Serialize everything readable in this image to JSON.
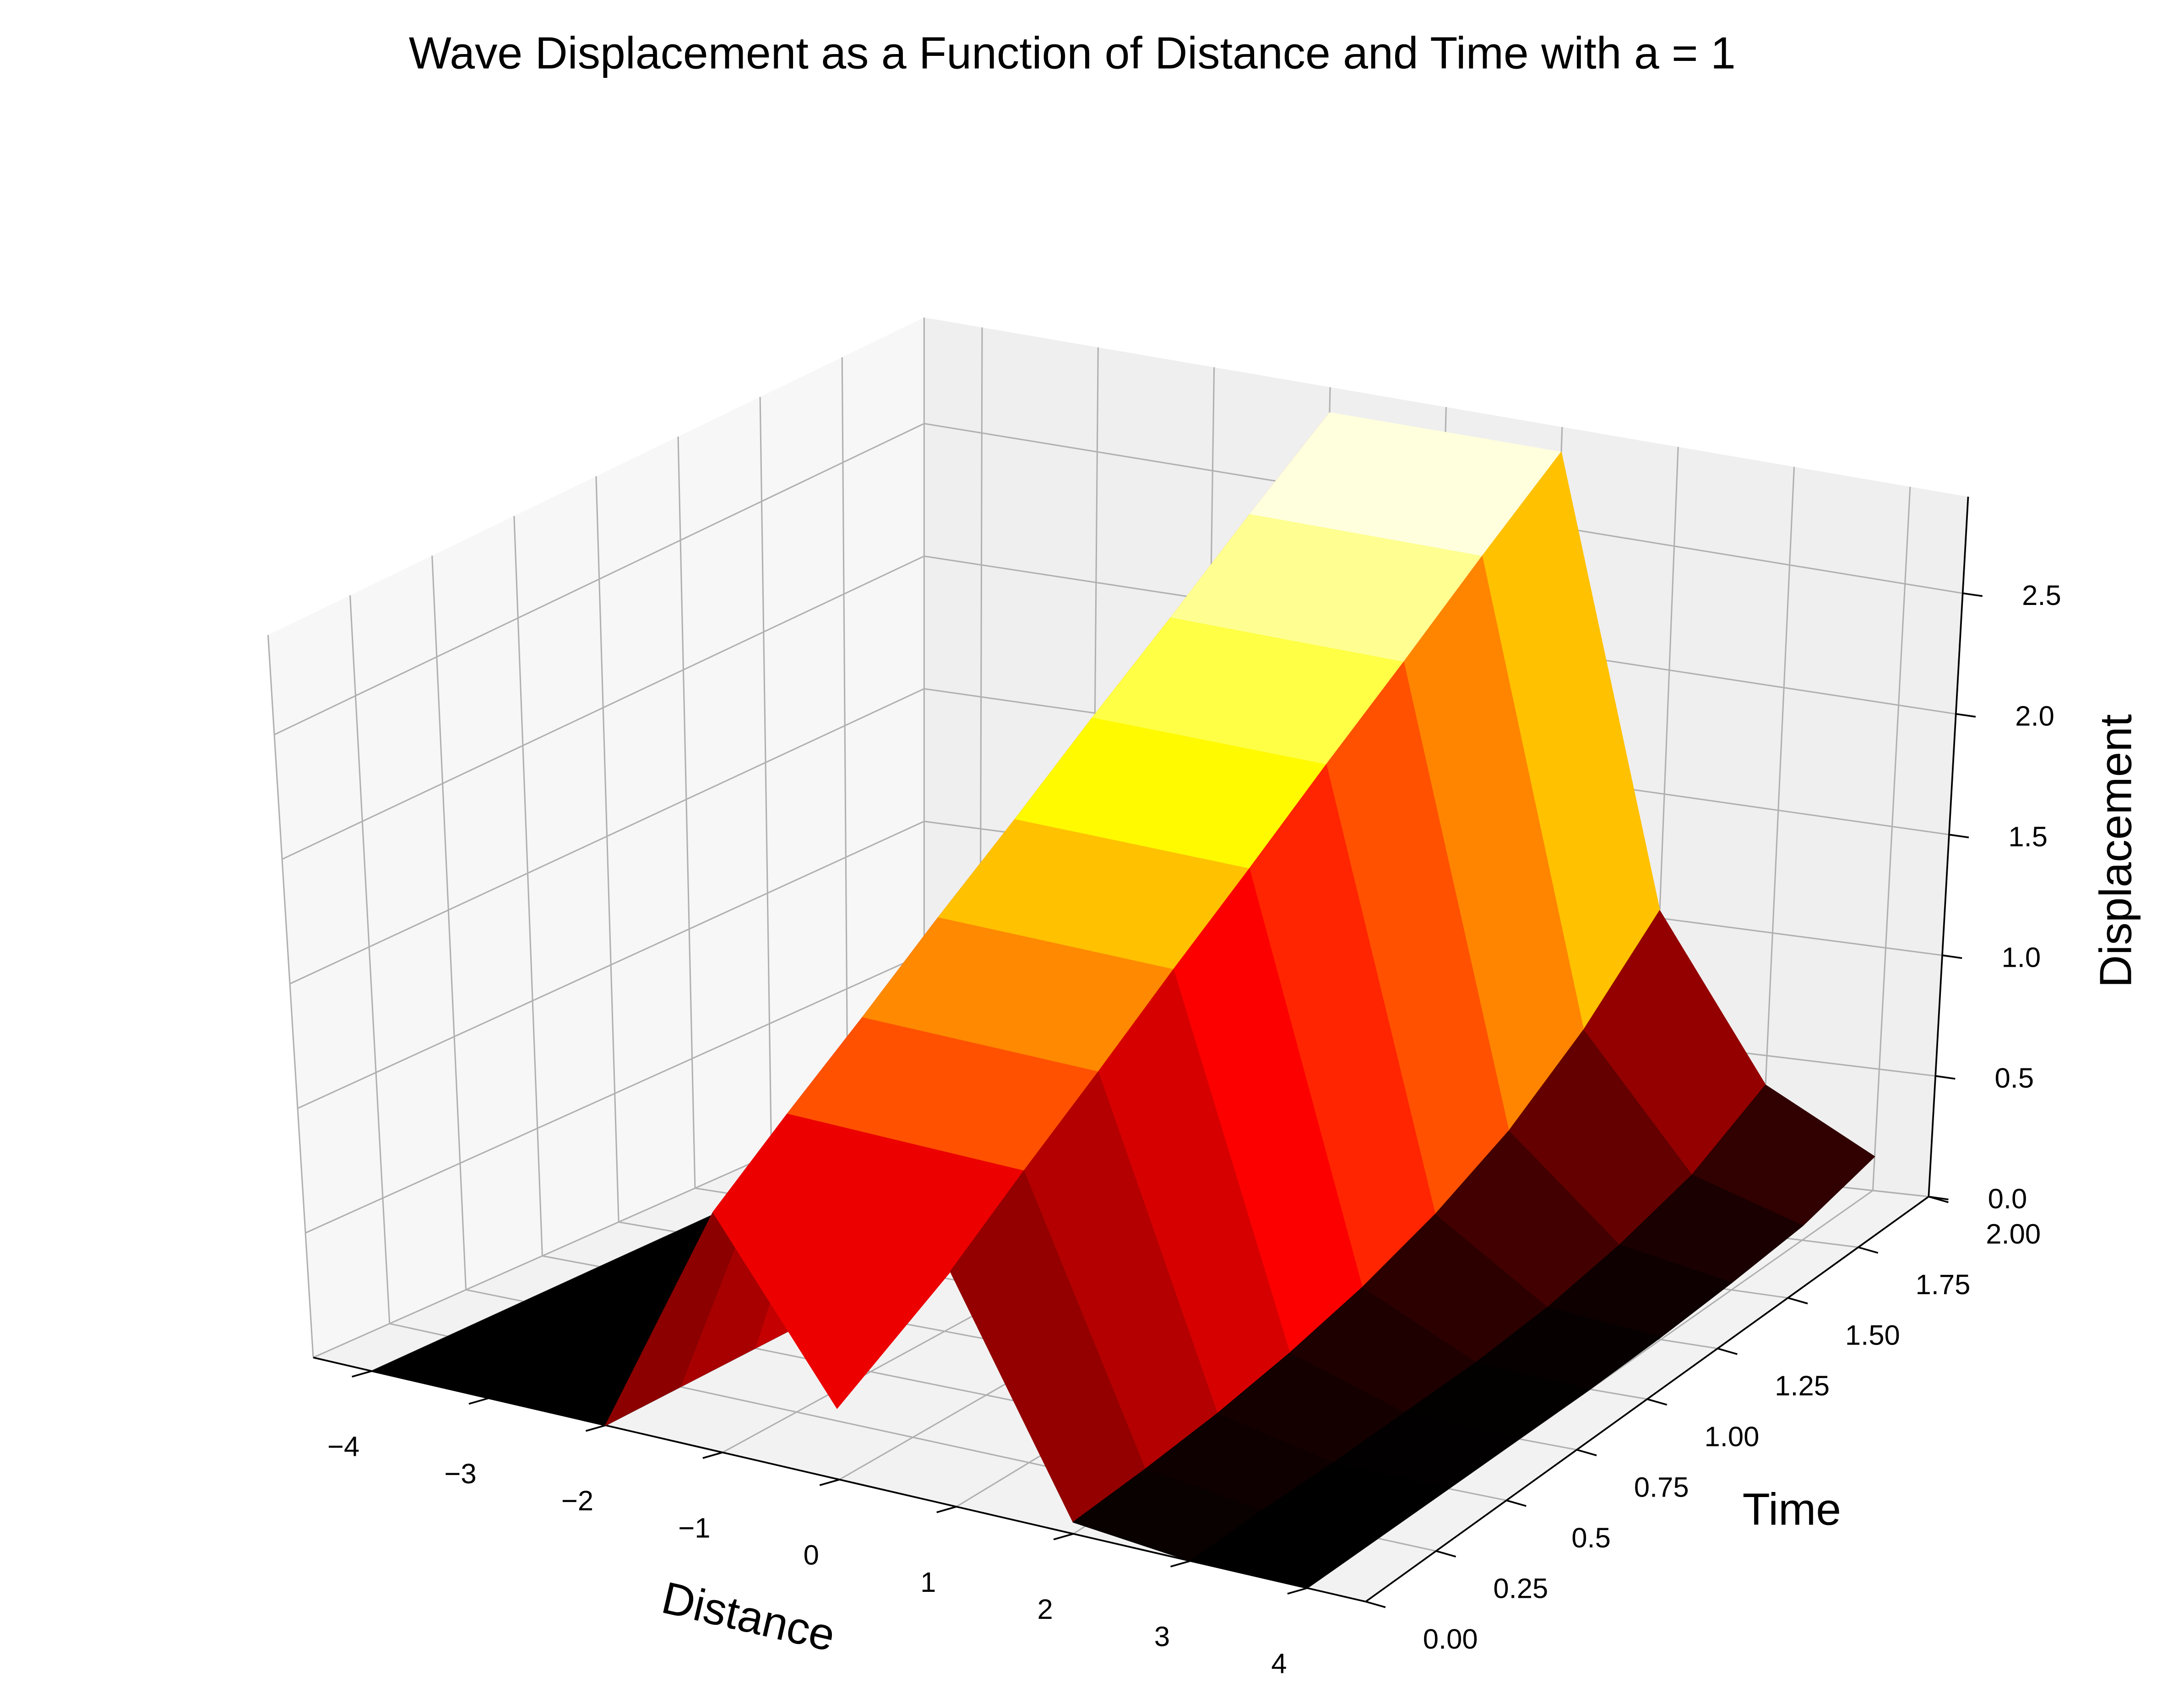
{
  "chart_data": {
    "type": "surface",
    "title": "Wave Displacement as a Function of Distance and Time with a = 1",
    "x_label": "Distance",
    "y_label": "Time",
    "z_label": "Displacement",
    "colormap": "hot",
    "grid": true,
    "x": [
      -4,
      -3,
      -2,
      -1,
      0,
      1,
      2,
      3,
      4
    ],
    "y": [
      0,
      0.25,
      0.5,
      0.75,
      1,
      1.25,
      1.5,
      1.75,
      2
    ],
    "z": [
      [
        0,
        0,
        0,
        1.0,
        0.3,
        1.0,
        0.05,
        0,
        0
      ],
      [
        0,
        0,
        0,
        1.23,
        1.23,
        1.23,
        0.08,
        0.01,
        0
      ],
      [
        0,
        0,
        0,
        1.45,
        1.45,
        1.45,
        0.12,
        0.01,
        0
      ],
      [
        0,
        0,
        0,
        1.68,
        1.68,
        1.68,
        0.18,
        0.02,
        0
      ],
      [
        0,
        0,
        0,
        1.9,
        1.9,
        1.9,
        0.26,
        0.03,
        0
      ],
      [
        0,
        0,
        0,
        2.13,
        2.13,
        2.13,
        0.37,
        0.06,
        0.01
      ],
      [
        0,
        0,
        0,
        2.35,
        2.35,
        2.35,
        0.52,
        0.12,
        0.03
      ],
      [
        0,
        0,
        0,
        2.58,
        2.58,
        2.58,
        0.74,
        0.21,
        0.06
      ],
      [
        0,
        0,
        0,
        2.8,
        2.8,
        2.8,
        1.03,
        0.38,
        0.14
      ]
    ],
    "xlim": [
      -4.5,
      4.5
    ],
    "ylim": [
      0,
      2
    ],
    "zlim": [
      0,
      2.9
    ],
    "xticks": [
      {
        "value": -4,
        "label": "−4"
      },
      {
        "value": -3,
        "label": "−3"
      },
      {
        "value": -2,
        "label": "−2"
      },
      {
        "value": -1,
        "label": "−1"
      },
      0,
      1,
      2,
      3,
      4
    ],
    "yticks": [
      {
        "value": 0,
        "label": "0.00"
      },
      0.25,
      0.5,
      0.75,
      {
        "value": 1,
        "label": "1.00"
      },
      1.25,
      {
        "value": 1.5,
        "label": "1.50"
      },
      1.75,
      {
        "value": 2,
        "label": "2.00"
      }
    ],
    "zticks": [
      {
        "value": 0,
        "label": "0.0"
      },
      0.5,
      {
        "value": 1,
        "label": "1.0"
      },
      1.5,
      {
        "value": 2,
        "label": "2.0"
      },
      2.5
    ]
  }
}
